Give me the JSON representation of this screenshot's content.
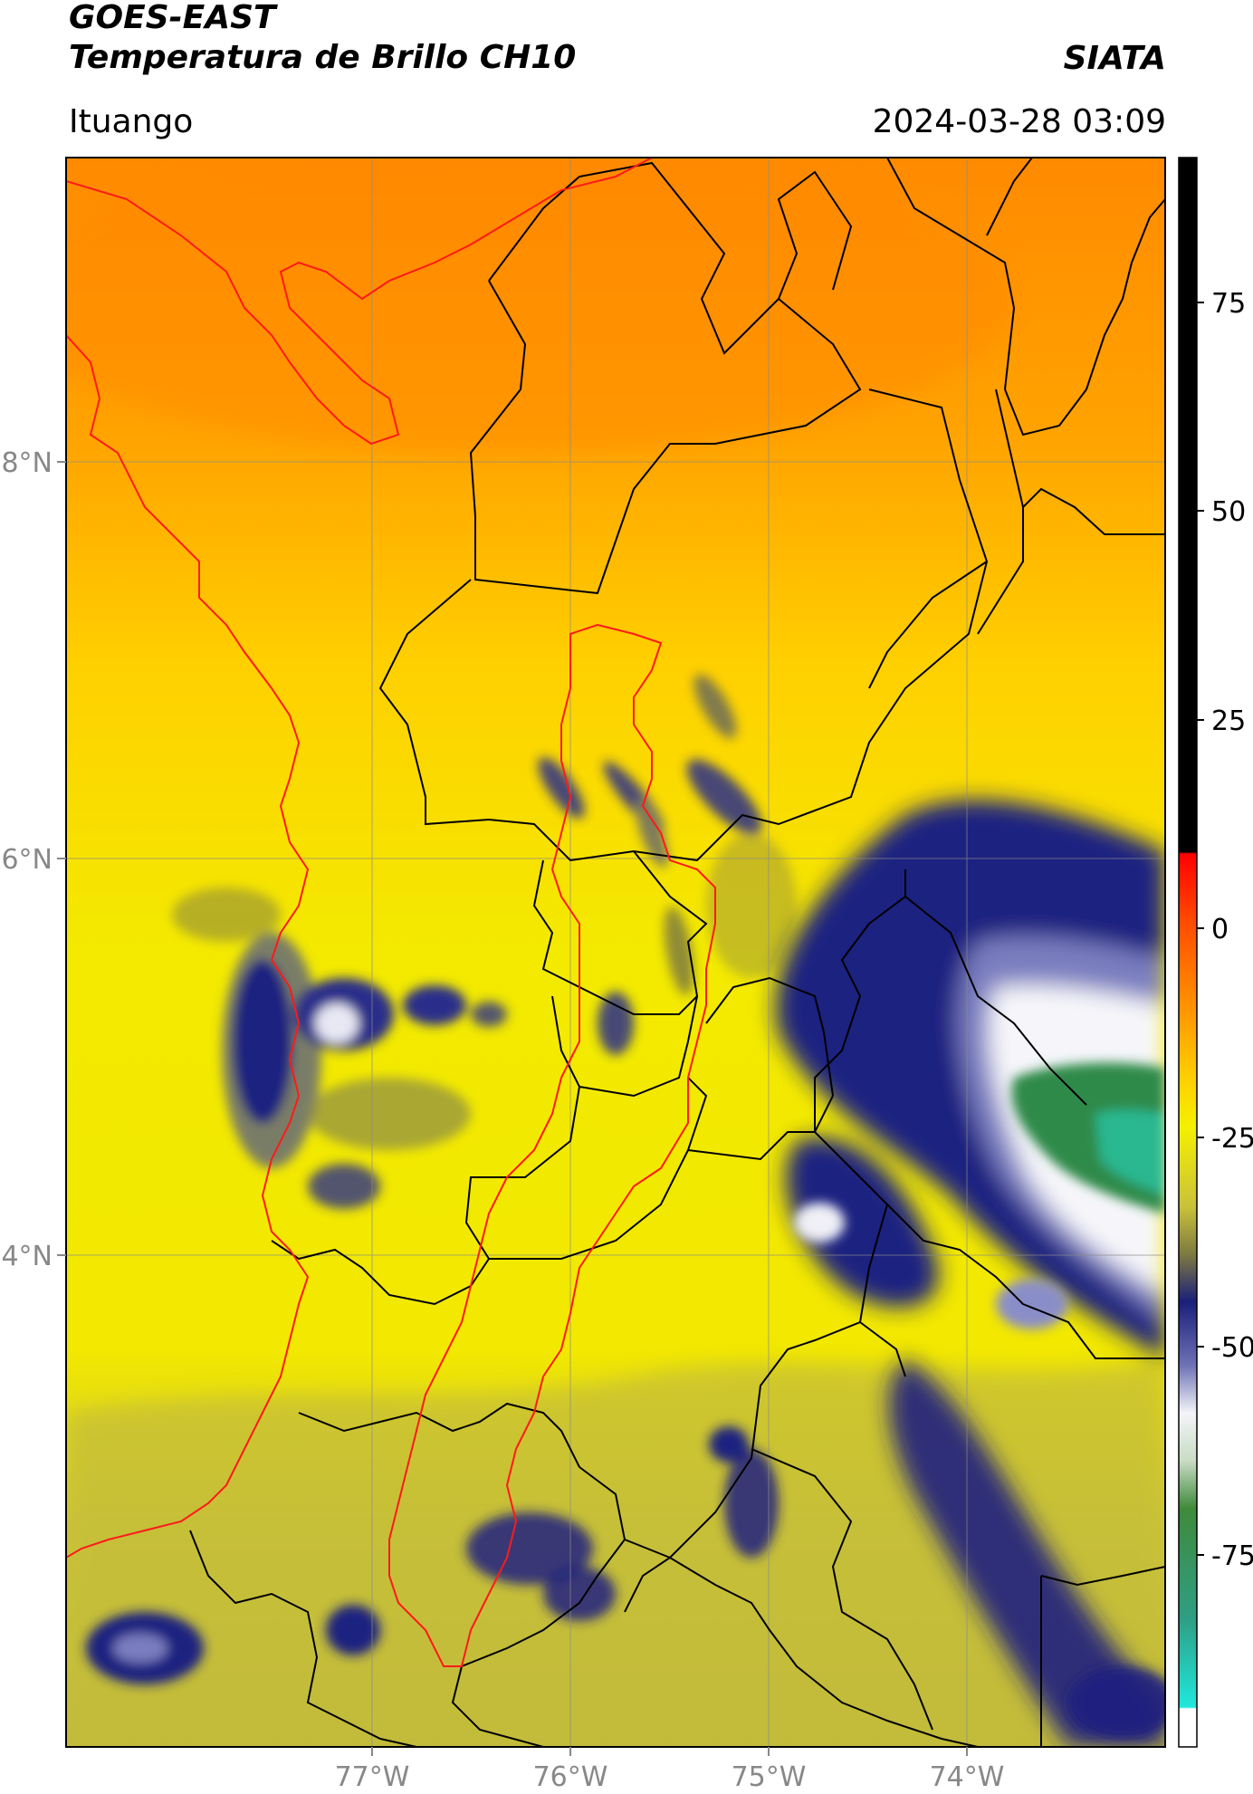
{
  "header": {
    "title_line1": "GOES-EAST",
    "title_line2": "Temperatura de Brillo CH10",
    "brand": "SIATA",
    "region": "Ituango",
    "datetime": "2024-03-28 03:09"
  },
  "map": {
    "lat_labels": [
      "8°N",
      "6°N",
      "4°N"
    ],
    "lon_labels": [
      "77°W",
      "76°W",
      "75°W",
      "74°W"
    ]
  },
  "colorbar": {
    "ticks": [
      "75",
      "50",
      "25",
      "0",
      "-25",
      "-50",
      "-75"
    ],
    "colors": {
      "black": "#000000",
      "red": "#ff0000",
      "orange": "#ff8c00",
      "yellow": "#f5f000",
      "olive": "#b8b43a",
      "navy": "#1a1f7a",
      "white": "#ffffff",
      "green": "#2f8a3a",
      "cyan": "#1fe0d8"
    }
  }
}
